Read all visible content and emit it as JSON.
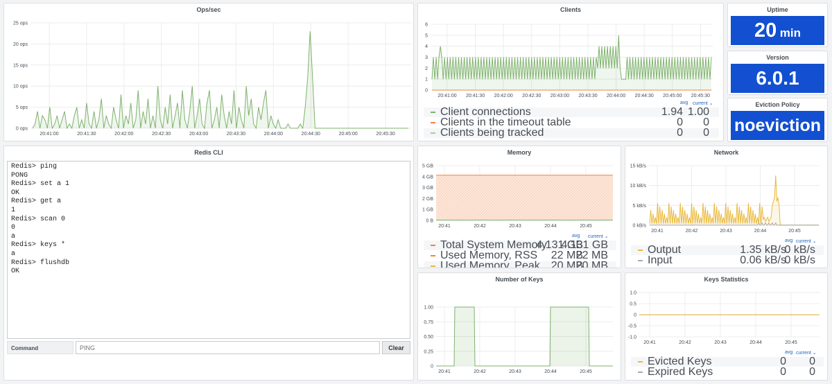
{
  "colors": {
    "green": "#7eb26d",
    "orange": "#ef843c",
    "yellow": "#eab839",
    "grey": "#aaaaaa",
    "blue": "#1250d1"
  },
  "ops": {
    "title": "Ops/sec",
    "y_ticks": [
      "25 ops",
      "20 ops",
      "15 ops",
      "10 ops",
      "5 ops",
      "0 ops"
    ],
    "x_ticks": [
      "20:41:00",
      "20:41:30",
      "20:42:00",
      "20:42:30",
      "20:43:00",
      "20:43:30",
      "20:44:00",
      "20:44:30",
      "20:45:00",
      "20:45:30"
    ]
  },
  "clients": {
    "title": "Clients",
    "y_ticks": [
      "6",
      "5",
      "4",
      "3",
      "2",
      "1",
      "0"
    ],
    "x_ticks": [
      "20:41:00",
      "20:41:30",
      "20:42:00",
      "20:42:30",
      "20:43:00",
      "20:43:30",
      "20:44:00",
      "20:44:30",
      "20:45:00",
      "20:45:30"
    ],
    "legend_headers": {
      "avg": "avg",
      "current": "current ⌄"
    },
    "legend": [
      {
        "name": "Client connections",
        "avg": "1.94",
        "current": "1.00"
      },
      {
        "name": "Clients in the timeout table",
        "avg": "0",
        "current": "0"
      },
      {
        "name": "Clients being tracked",
        "avg": "0",
        "current": "0"
      }
    ]
  },
  "uptime": {
    "title": "Uptime",
    "value": "20",
    "unit": "min"
  },
  "version": {
    "title": "Version",
    "value": "6.0.1"
  },
  "eviction": {
    "title": "Eviction Policy",
    "value": "noeviction"
  },
  "cli": {
    "title": "Redis CLI",
    "lines": [
      "Redis> ping",
      "PONG",
      "Redis> set a 1",
      "OK",
      "Redis> get a",
      "1",
      "Redis> scan 0",
      "0",
      "a",
      "Redis> keys *",
      "a",
      "Redis> flushdb",
      "OK"
    ],
    "command_label": "Command",
    "command_placeholder": "PING",
    "clear_label": "Clear"
  },
  "memory": {
    "title": "Memory",
    "y_ticks": [
      "5 GB",
      "4 GB",
      "3 GB",
      "2 GB",
      "1 GB",
      "0 B"
    ],
    "x_ticks": [
      "20:41",
      "20:42",
      "20:43",
      "20:44",
      "20:45"
    ],
    "legend_headers": {
      "avg": "avg",
      "current": "current ⌄"
    },
    "legend": [
      {
        "name": "Total System Memory",
        "avg": "4.131 GB",
        "current": "4.131 GB"
      },
      {
        "name": "Used Memory, RSS",
        "avg": "22 MB",
        "current": "22 MB"
      },
      {
        "name": "Used Memory, Peak",
        "avg": "20 MB",
        "current": "20 MB"
      }
    ]
  },
  "network": {
    "title": "Network",
    "y_ticks": [
      "15 kB/s",
      "10 kB/s",
      "5 kB/s",
      "0 kB/s"
    ],
    "x_ticks": [
      "20:41",
      "20:42",
      "20:43",
      "20:44",
      "20:45"
    ],
    "legend_headers": {
      "avg": "avg",
      "current": "current ⌄"
    },
    "legend": [
      {
        "name": "Output",
        "avg": "1.35 kB/s",
        "current": "0 kB/s"
      },
      {
        "name": "Input",
        "avg": "0.06 kB/s",
        "current": "0 kB/s"
      }
    ]
  },
  "keys": {
    "title": "Number of Keys",
    "y_ticks": [
      "1.00",
      "0.75",
      "0.50",
      "0.25",
      "0"
    ],
    "x_ticks": [
      "20:41",
      "20:42",
      "20:43",
      "20:44",
      "20:45"
    ]
  },
  "keystats": {
    "title": "Keys Statistics",
    "y_ticks": [
      "1.0",
      "0.5",
      "0",
      "-0.5",
      "-1.0"
    ],
    "x_ticks": [
      "20:41",
      "20:42",
      "20:43",
      "20:44",
      "20:45"
    ],
    "legend_headers": {
      "avg": "avg",
      "current": "current ⌄"
    },
    "legend": [
      {
        "name": "Evicted Keys",
        "avg": "0",
        "current": "0"
      },
      {
        "name": "Expired Keys",
        "avg": "0",
        "current": "0"
      }
    ]
  }
}
